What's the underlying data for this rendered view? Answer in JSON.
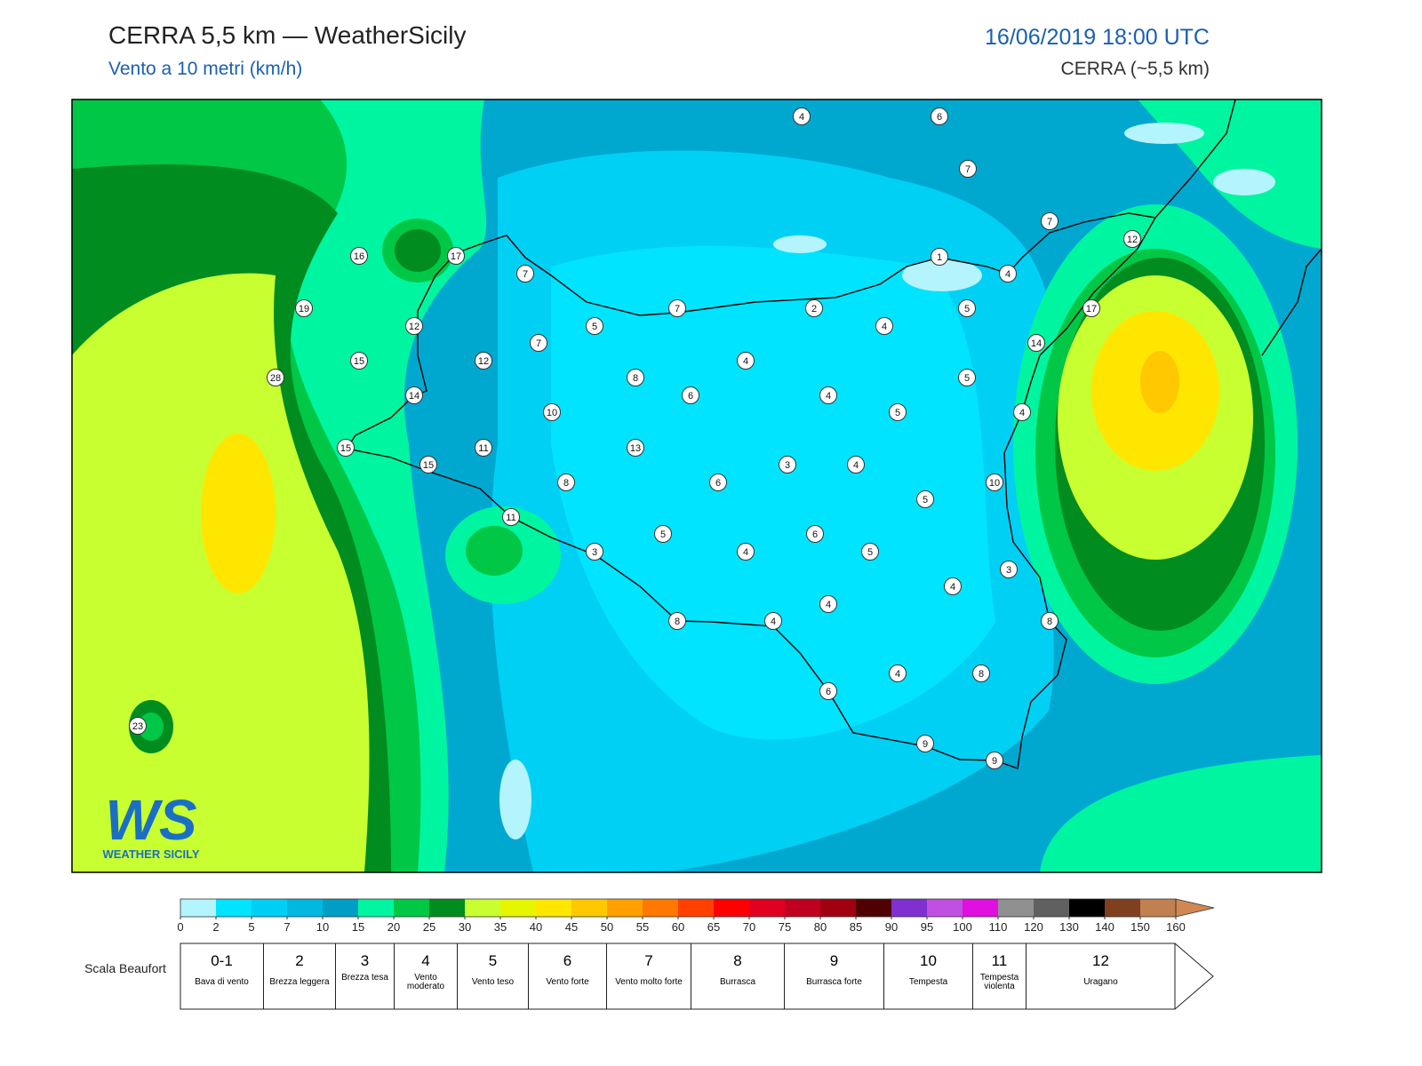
{
  "header": {
    "title": "CERRA 5,5 km — WeatherSicily",
    "subtitle": "Vento a 10 metri (km/h)",
    "datetime": "16/06/2019 18:00 UTC",
    "model": "CERRA (~5,5 km)"
  },
  "stations": [
    4,
    6,
    7,
    7,
    12,
    1,
    4,
    16,
    17,
    19,
    7,
    7,
    2,
    5,
    17,
    12,
    5,
    7,
    4,
    14,
    15,
    12,
    4,
    28,
    8,
    5,
    14,
    6,
    4,
    10,
    5,
    4,
    15,
    11,
    13,
    15,
    3,
    4,
    8,
    6,
    10,
    5,
    11,
    5,
    6,
    3,
    4,
    5,
    3,
    4,
    4,
    8,
    4,
    8,
    4,
    8,
    6,
    9,
    9,
    23
  ],
  "colorbar": {
    "ticks": [
      0,
      2,
      5,
      7,
      10,
      15,
      20,
      25,
      30,
      35,
      40,
      45,
      50,
      55,
      60,
      65,
      70,
      75,
      80,
      85,
      90,
      95,
      100,
      110,
      120,
      130,
      140,
      150,
      160
    ],
    "colors": [
      "#b4f4fc",
      "#00e4ff",
      "#00cff5",
      "#00b8e0",
      "#009ec4",
      "#00f5a0",
      "#00c846",
      "#008c1e",
      "#c8ff30",
      "#e6f500",
      "#ffe600",
      "#ffc800",
      "#ffa000",
      "#ff7800",
      "#ff4000",
      "#ff0000",
      "#e00020",
      "#c00020",
      "#a00010",
      "#500000",
      "#8030d0",
      "#c050e0",
      "#e010e0",
      "#909090",
      "#606060",
      "#000000",
      "#804020",
      "#c08050"
    ],
    "extend_color": "#d08850"
  },
  "beaufort": {
    "title": "Scala Beaufort",
    "levels": [
      {
        "force": "0-1",
        "label": "Bava di vento"
      },
      {
        "force": "2",
        "label": "Brezza leggera"
      },
      {
        "force": "3",
        "label": "Brezza tesa"
      },
      {
        "force": "4",
        "label": "Vento moderato"
      },
      {
        "force": "5",
        "label": "Vento teso"
      },
      {
        "force": "6",
        "label": "Vento forte"
      },
      {
        "force": "7",
        "label": "Vento molto forte"
      },
      {
        "force": "8",
        "label": "Burrasca"
      },
      {
        "force": "9",
        "label": "Burrasca forte"
      },
      {
        "force": "10",
        "label": "Tempesta"
      },
      {
        "force": "11",
        "label": "Tempesta violenta"
      },
      {
        "force": "12",
        "label": "Uragano"
      }
    ]
  },
  "logo": {
    "initials": "WS",
    "name": "WEATHER SICILY"
  }
}
